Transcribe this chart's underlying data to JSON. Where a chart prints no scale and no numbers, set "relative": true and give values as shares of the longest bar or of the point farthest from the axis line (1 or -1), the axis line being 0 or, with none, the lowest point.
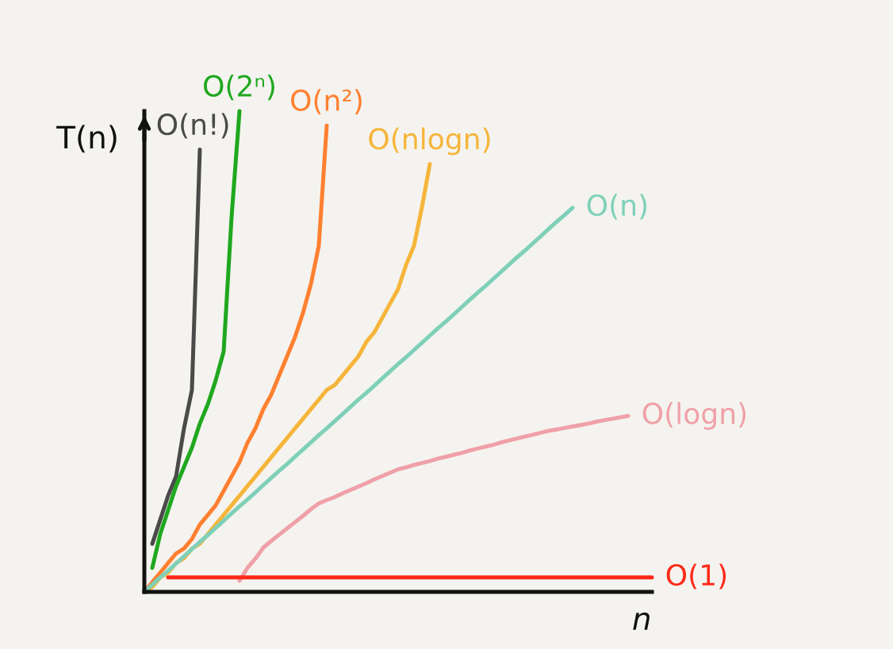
{
  "chart_data": {
    "type": "line",
    "relative": true,
    "xlabel": "n",
    "ylabel": "T(n)",
    "line_style": "solid",
    "categories": [
      null,
      null,
      null,
      null,
      null,
      null,
      null,
      null,
      null,
      null,
      null,
      null,
      null,
      null,
      null,
      null,
      null,
      null,
      null,
      null,
      null,
      null,
      null,
      null,
      null,
      null,
      null,
      null,
      null,
      null,
      null,
      null,
      null,
      null,
      null,
      null,
      null,
      null,
      null,
      null,
      null,
      null,
      null,
      null,
      null,
      null,
      null,
      null,
      null,
      null,
      null,
      null,
      null,
      null,
      null,
      null,
      null,
      null,
      null,
      null,
      null,
      null,
      null,
      null,
      null
    ],
    "series": [
      {
        "name": "O(n!)",
        "color": "#4a4a4a",
        "values": [
          null,
          0.1,
          0.15,
          0.2,
          0.24,
          0.34,
          0.42,
          0.92,
          null,
          null,
          null,
          null,
          null,
          null,
          null,
          null,
          null,
          null,
          null,
          null,
          null,
          null,
          null,
          null,
          null,
          null,
          null,
          null,
          null,
          null,
          null,
          null,
          null,
          null,
          null,
          null,
          null,
          null,
          null,
          null,
          null,
          null,
          null,
          null,
          null,
          null,
          null,
          null,
          null,
          null,
          null,
          null,
          null,
          null,
          null,
          null,
          null,
          null,
          null,
          null,
          null,
          null,
          null,
          null,
          null
        ]
      },
      {
        "name": "O(2ⁿ)",
        "color": "#1fa81f",
        "values": [
          null,
          0.05,
          0.12,
          0.17,
          0.22,
          0.26,
          0.3,
          0.35,
          0.39,
          0.44,
          0.5,
          0.78,
          1.0,
          null,
          null,
          null,
          null,
          null,
          null,
          null,
          null,
          null,
          null,
          null,
          null,
          null,
          null,
          null,
          null,
          null,
          null,
          null,
          null,
          null,
          null,
          null,
          null,
          null,
          null,
          null,
          null,
          null,
          null,
          null,
          null,
          null,
          null,
          null,
          null,
          null,
          null,
          null,
          null,
          null,
          null,
          null,
          null,
          null,
          null,
          null,
          null,
          null,
          null,
          null,
          null
        ]
      },
      {
        "name": "O(n²)",
        "color": "#ff8030",
        "values": [
          0.0,
          0.02,
          0.04,
          0.06,
          0.08,
          0.09,
          0.11,
          0.14,
          0.16,
          0.18,
          0.21,
          0.24,
          0.27,
          0.31,
          0.34,
          0.38,
          0.41,
          0.45,
          0.49,
          0.53,
          0.58,
          0.64,
          0.72,
          0.97,
          null,
          null,
          null,
          null,
          null,
          null,
          null,
          null,
          null,
          null,
          null,
          null,
          null,
          null,
          null,
          null,
          null,
          null,
          null,
          null,
          null,
          null,
          null,
          null,
          null,
          null,
          null,
          null,
          null,
          null,
          null,
          null,
          null,
          null,
          null,
          null,
          null,
          null,
          null,
          null,
          null
        ]
      },
      {
        "name": "O(nlogn)",
        "color": "#f6b53a",
        "values": [
          0.0,
          0.01,
          0.03,
          0.04,
          0.06,
          0.07,
          0.09,
          0.1,
          0.12,
          0.14,
          0.16,
          0.18,
          0.2,
          0.22,
          0.24,
          0.26,
          0.28,
          0.3,
          0.32,
          0.34,
          0.36,
          0.38,
          0.4,
          0.42,
          0.43,
          0.45,
          0.47,
          0.49,
          0.52,
          0.54,
          0.57,
          0.6,
          0.63,
          0.68,
          0.72,
          0.8,
          0.89,
          null,
          null,
          null,
          null,
          null,
          null,
          null,
          null,
          null,
          null,
          null,
          null,
          null,
          null,
          null,
          null,
          null,
          null,
          null,
          null,
          null,
          null,
          null,
          null,
          null,
          null,
          null,
          null
        ]
      },
      {
        "name": "O(n)",
        "color": "#7fd0b8",
        "values": [
          0.0,
          0.015,
          0.03,
          0.044,
          0.059,
          0.074,
          0.089,
          0.104,
          0.118,
          0.133,
          0.148,
          0.163,
          0.178,
          0.192,
          0.207,
          0.222,
          0.237,
          0.252,
          0.266,
          0.281,
          0.296,
          0.311,
          0.326,
          0.34,
          0.355,
          0.37,
          0.385,
          0.4,
          0.414,
          0.429,
          0.444,
          0.459,
          0.474,
          0.488,
          0.503,
          0.518,
          0.533,
          0.548,
          0.562,
          0.577,
          0.592,
          0.607,
          0.622,
          0.636,
          0.651,
          0.666,
          0.681,
          0.696,
          0.71,
          0.725,
          0.74,
          0.755,
          0.77,
          0.784,
          0.799,
          null,
          null,
          null,
          null,
          null,
          null,
          null,
          null,
          null,
          null
        ]
      },
      {
        "name": "O(logn)",
        "color": "#f0a0a8",
        "values": [
          null,
          null,
          null,
          null,
          null,
          null,
          null,
          null,
          null,
          null,
          null,
          null,
          0.023,
          0.05,
          0.069,
          0.092,
          0.106,
          0.119,
          0.132,
          0.145,
          0.158,
          0.172,
          0.184,
          0.191,
          0.197,
          0.205,
          0.212,
          0.219,
          0.226,
          0.234,
          0.241,
          0.248,
          0.255,
          0.259,
          0.264,
          0.268,
          0.272,
          0.277,
          0.281,
          0.285,
          0.289,
          0.294,
          0.298,
          0.302,
          0.306,
          0.311,
          0.315,
          0.319,
          0.323,
          0.327,
          0.331,
          0.335,
          0.338,
          0.341,
          0.344,
          0.347,
          0.35,
          0.354,
          0.357,
          0.36,
          0.363,
          0.366,
          null,
          null,
          null
        ]
      },
      {
        "name": "O(1)",
        "color": "#ff2a1a",
        "values": [
          null,
          null,
          null,
          0.03,
          0.03,
          0.03,
          0.03,
          0.03,
          0.03,
          0.03,
          0.03,
          0.03,
          0.03,
          0.03,
          0.03,
          0.03,
          0.03,
          0.03,
          0.03,
          0.03,
          0.03,
          0.03,
          0.03,
          0.03,
          0.03,
          0.03,
          0.03,
          0.03,
          0.03,
          0.03,
          0.03,
          0.03,
          0.03,
          0.03,
          0.03,
          0.03,
          0.03,
          0.03,
          0.03,
          0.03,
          0.03,
          0.03,
          0.03,
          0.03,
          0.03,
          0.03,
          0.03,
          0.03,
          0.03,
          0.03,
          0.03,
          0.03,
          0.03,
          0.03,
          0.03,
          0.03,
          0.03,
          0.03,
          0.03,
          0.03,
          0.03,
          0.03,
          0.03,
          0.03,
          0.03
        ]
      }
    ]
  }
}
